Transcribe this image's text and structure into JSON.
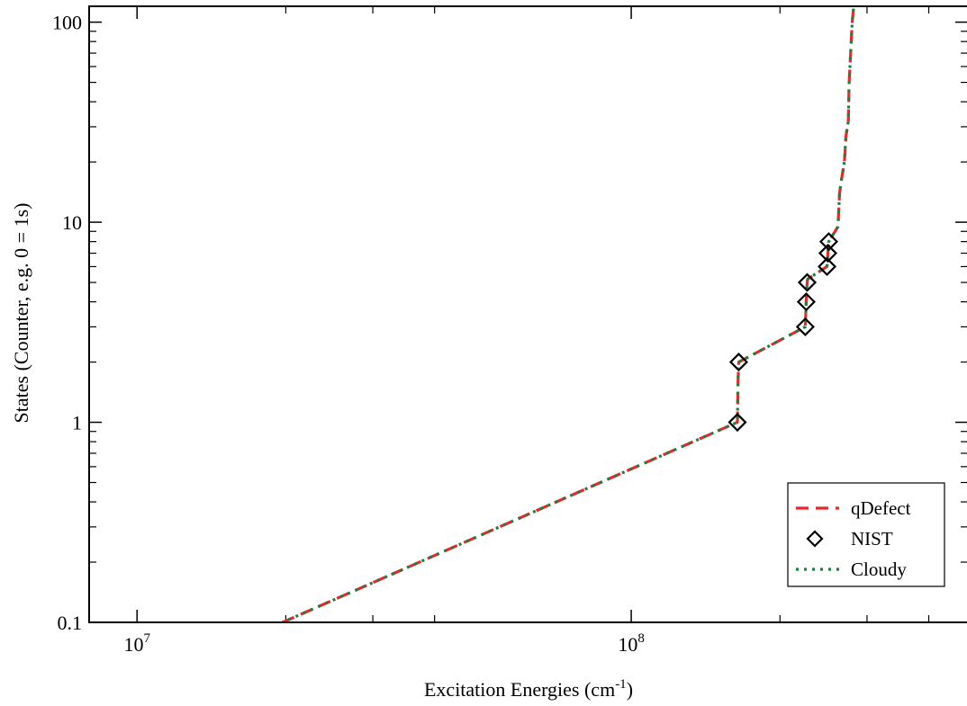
{
  "chart_data": {
    "type": "line",
    "xlabel": "Excitation Energies (cm",
    "xlabel_sup": "-1",
    "xlabel_tail": ")",
    "ylabel": "States (Counter, e.g. 0 = 1s)",
    "xscale": "log",
    "yscale": "log",
    "xlim": [
      8000000,
      480000000
    ],
    "ylim": [
      0.1,
      120
    ],
    "grid": false,
    "legend_position": "bottom-right",
    "x_tick_labels": [
      {
        "value": 10000000,
        "mantissa": "10",
        "exp": "7"
      },
      {
        "value": 100000000,
        "mantissa": "10",
        "exp": "8"
      }
    ],
    "x_minor_ticks": [
      20000000,
      30000000,
      40000000,
      200000000,
      300000000,
      400000000
    ],
    "y_tick_labels": [
      {
        "value": 0.1,
        "label": "0.1"
      },
      {
        "value": 1,
        "label": "1"
      },
      {
        "value": 10,
        "label": "10"
      },
      {
        "value": 100,
        "label": "100"
      }
    ],
    "y_minor_ticks": [
      0.2,
      0.3,
      0.4,
      0.5,
      0.6,
      0.7,
      0.8,
      0.9,
      2,
      3,
      4,
      5,
      6,
      7,
      8,
      9,
      20,
      30,
      40,
      50,
      60,
      70,
      80,
      90
    ],
    "colors": {
      "qDefect": "#e8282a",
      "NIST": "#000000",
      "Cloudy": "#1a8040"
    },
    "series": [
      {
        "name": "qDefect",
        "style": "dashed",
        "x": [
          19700000,
          164000000,
          164500000,
          165000000,
          225000000,
          226000000,
          227000000,
          227500000,
          249000000,
          250000000,
          251000000,
          262000000,
          264000000,
          266000000,
          270000000,
          272000000,
          275000000,
          276000000,
          278000000,
          280000000,
          282000000
        ],
        "y": [
          0.1,
          1,
          1.6,
          2,
          3,
          4,
          5,
          5.2,
          6,
          7,
          8,
          9.5,
          14,
          16,
          20,
          27,
          32,
          50,
          70,
          100,
          120
        ]
      },
      {
        "name": "NIST",
        "style": "markers",
        "marker": "diamond",
        "x": [
          164000000,
          165000000,
          225000000,
          226000000,
          227000000,
          249000000,
          250000000,
          251000000
        ],
        "y": [
          1,
          2,
          3,
          4,
          5,
          6,
          7,
          8
        ]
      },
      {
        "name": "Cloudy",
        "style": "dotted",
        "x": [
          19700000,
          164000000,
          164500000,
          165000000,
          225000000,
          226000000,
          227000000,
          227500000,
          249000000,
          250000000,
          251000000,
          262000000,
          264000000,
          266000000,
          270000000,
          272000000,
          275000000,
          276000000,
          278000000,
          280000000,
          282000000
        ],
        "y": [
          0.1,
          1,
          1.6,
          2,
          3,
          4,
          5,
          5.2,
          6,
          7,
          8,
          9.5,
          14,
          16,
          20,
          27,
          32,
          50,
          70,
          100,
          120
        ]
      }
    ]
  }
}
